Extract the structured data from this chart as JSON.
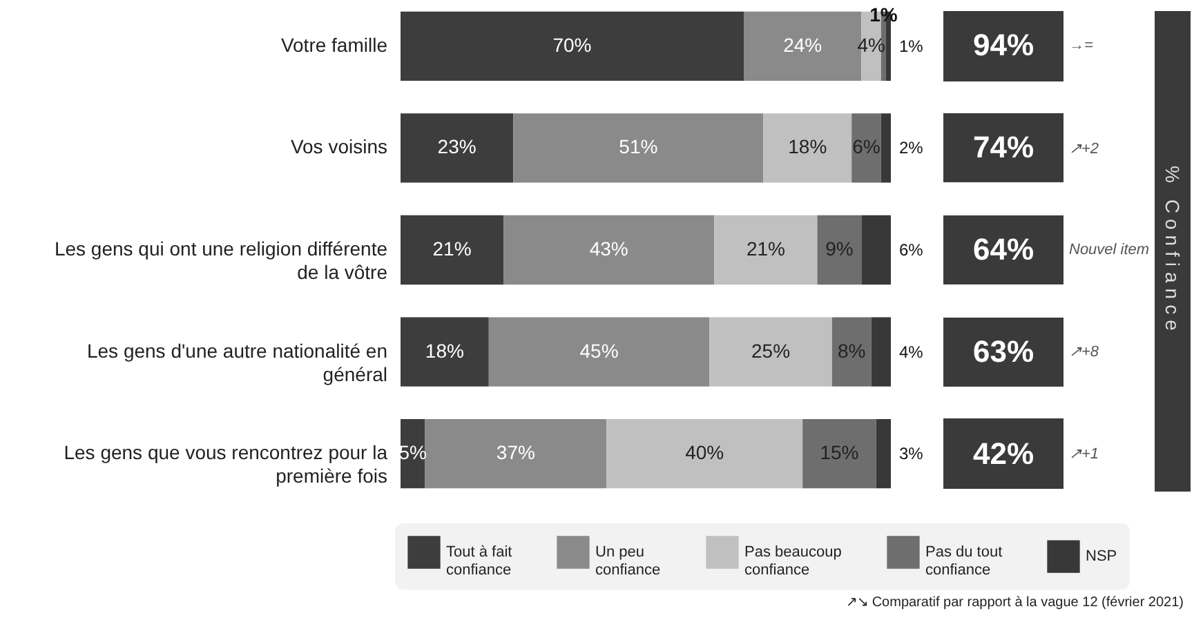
{
  "chart_data": {
    "type": "bar",
    "orientation": "horizontal",
    "stacked": true,
    "legend": "bottom",
    "categories": [
      "Votre famille",
      "Vos voisins",
      "Les gens qui ont une religion différente de la vôtre",
      "Les gens d'une autre nationalité en général",
      "Les gens que vous rencontrez pour la première fois"
    ],
    "series": [
      {
        "name": "Tout à fait confiance",
        "color": "#3d3d3d",
        "values": [
          70,
          23,
          21,
          18,
          5
        ],
        "value_labels": [
          "70%",
          "23%",
          "21%",
          "18%",
          "5%"
        ]
      },
      {
        "name": "Un peu confiance",
        "color": "#8a8a8a",
        "values": [
          24,
          51,
          43,
          45,
          37
        ],
        "value_labels": [
          "24%",
          "51%",
          "43%",
          "45%",
          "37%"
        ]
      },
      {
        "name": "Pas beaucoup confiance",
        "color": "#c0c0c0",
        "values": [
          4,
          18,
          21,
          25,
          40
        ],
        "value_labels": [
          "4%",
          "18%",
          "21%",
          "25%",
          "40%"
        ]
      },
      {
        "name": "Pas du tout confiance",
        "color": "#6e6e6e",
        "values": [
          1,
          6,
          9,
          8,
          15
        ],
        "value_labels": [
          "1%",
          "6%",
          "9%",
          "8%",
          "15%"
        ]
      },
      {
        "name": "NSP",
        "color": "#383838",
        "values": [
          1,
          2,
          6,
          4,
          3
        ],
        "value_labels": [
          "1%",
          "2%",
          "6%",
          "4%",
          "3%"
        ]
      }
    ],
    "annotations": [
      "94%",
      "74%",
      "64%",
      "63%",
      "42%",
      "→=",
      "↗+2",
      "Nouvel item",
      "↗+8",
      "↗+1",
      "% Confiance",
      "↗↘ Comparatif par rapport à la vague 12 (février 2021)"
    ]
  }
}
